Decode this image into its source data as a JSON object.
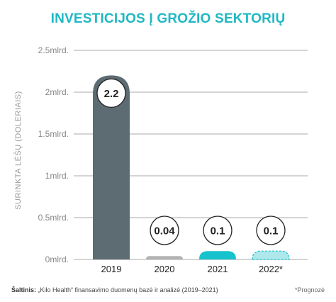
{
  "title": "INVESTICIJOS Į GROŽIO SEKTORIŲ",
  "source_label": "Šaltinis:",
  "source_text": " „Kilo Health“ finansavimo duomenų bazė ir analizė (2019–2021)",
  "forecast_note": "*Prognozė",
  "colors": {
    "title": "#1fb8c4",
    "bar_2019": "#5d6b73",
    "bar_2020": "#b3b3b3",
    "bar_2021": "#16c2cc",
    "bar_2022": "#aee8ec",
    "grid": "#aaaaaa",
    "axis_text": "#888888"
  },
  "chart_data": {
    "type": "bar",
    "title": "INVESTICIJOS Į GROŽIO SEKTORIŲ",
    "ylabel": "SURINKTA LĖŠŲ (DOLERIAIS)",
    "xlabel": "",
    "categories": [
      "2019",
      "2020",
      "2021",
      "2022*"
    ],
    "values": [
      2.2,
      0.04,
      0.1,
      0.1
    ],
    "value_labels": [
      "2.2",
      "0.04",
      "0.1",
      "0.1"
    ],
    "ylim": [
      0,
      2.5
    ],
    "yticks": [
      0,
      0.5,
      1,
      1.5,
      2,
      2.5
    ],
    "ytick_labels": [
      "0mlrd.",
      "0.5mlrd.",
      "1mlrd.",
      "1.5mlrd.",
      "2mlrd.",
      "2.5mlrd."
    ],
    "grid": true,
    "forecast_category": "2022*"
  }
}
